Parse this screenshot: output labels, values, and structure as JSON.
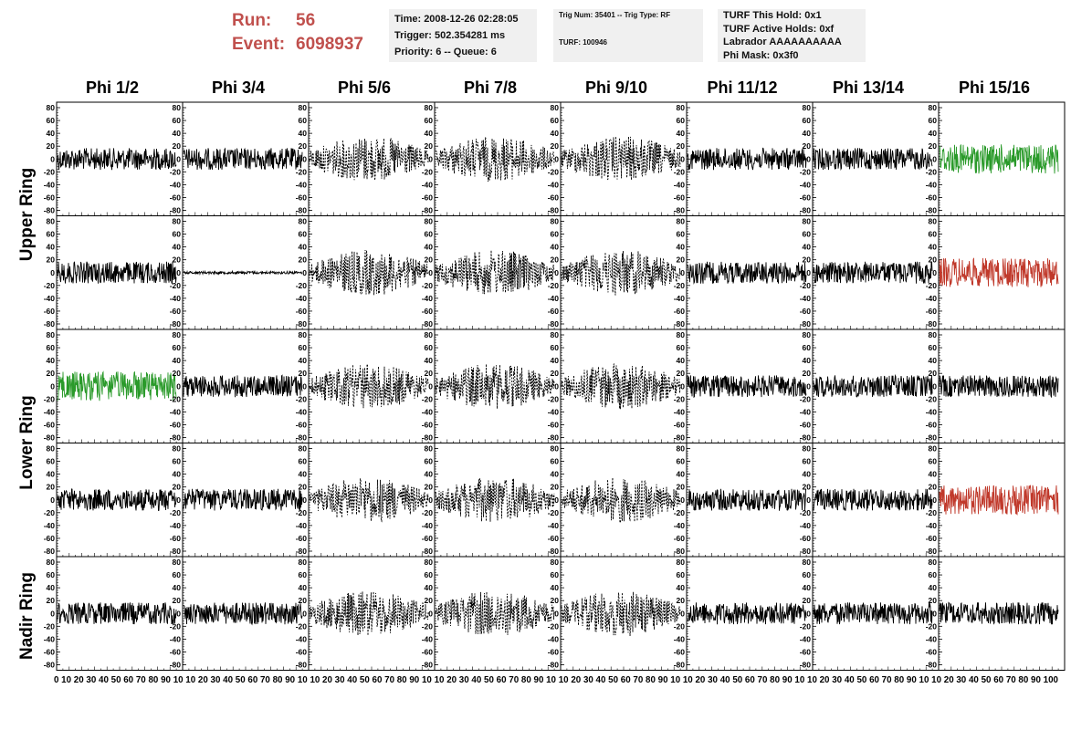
{
  "header": {
    "run_label": "Run:",
    "run_value": "56",
    "event_label": "Event:",
    "event_value": "6098937",
    "colors": {
      "header_red": "#c0504d",
      "box_bg": "#f0f0f0"
    },
    "time_box": {
      "time": "Time: 2008-12-26 02:28:05",
      "trigger": "Trigger: 502.354281 ms",
      "priority": "Priority: 6 -- Queue: 6"
    },
    "trig_box": {
      "trig": "Trig Num: 35401 -- Trig Type: RF",
      "turf": "TURF: 100946"
    },
    "turf_box": {
      "this_hold": "TURF This Hold: 0x1",
      "active_holds": "TURF Active Holds: 0xf",
      "labrador": "Labrador AAAAAAAAAA",
      "phi_mask": "Phi Mask: 0x3f0"
    }
  },
  "columns": [
    "Phi 1/2",
    "Phi 3/4",
    "Phi 5/6",
    "Phi 7/8",
    "Phi 9/10",
    "Phi 11/12",
    "Phi 13/14",
    "Phi 15/16"
  ],
  "rings": [
    "Upper Ring",
    "Lower Ring",
    "Nadir Ring"
  ],
  "y_ticks": [
    "80",
    "60",
    "40",
    "20",
    "0",
    "-20",
    "-40",
    "-60",
    "-80"
  ],
  "x_axis_strip": "0 10 20 30 40 50 60 70 80 90 10 10 20 30 40 50 60 70 80 90 10 10 20 30 40 50 60 70 80 90 10 10 20 30 40 50 60 70 80 90 10 10 20 30 40 50 60 70 80 90 10 10 20 30 40 50 60 70 80 90 10 10 20 30 40 50 60 70 80 90 10 10 20 30 40 50 60 70 80 90 100",
  "trace_colors": {
    "normal": "#000000",
    "green": "#2a9a2a",
    "red": "#c0392b"
  },
  "panels": [
    [
      "black",
      "black",
      "dotted",
      "dotted",
      "dotted",
      "black",
      "black",
      "green"
    ],
    [
      "black",
      "flat",
      "dotted",
      "dotted",
      "dotted",
      "black",
      "black",
      "red"
    ],
    [
      "green",
      "black",
      "dotted",
      "dotted",
      "dotted",
      "black",
      "black",
      "black"
    ],
    [
      "black",
      "black",
      "dotted",
      "dotted",
      "dotted",
      "black",
      "black",
      "red"
    ],
    [
      "black",
      "black",
      "dotted",
      "dotted",
      "dotted",
      "black",
      "black",
      "black"
    ]
  ]
}
